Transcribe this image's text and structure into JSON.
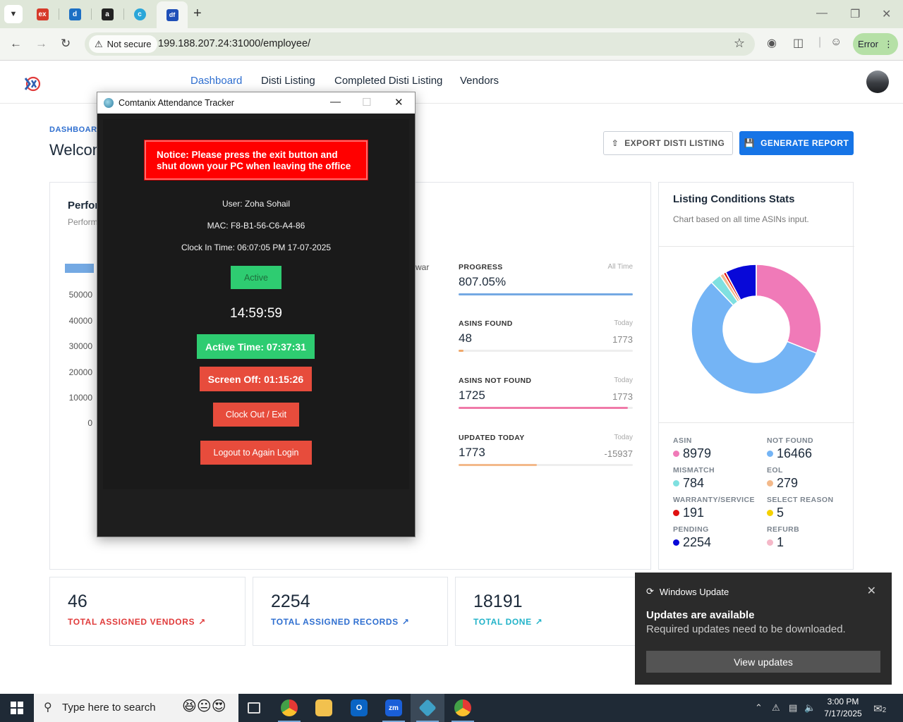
{
  "browser": {
    "tabs": [
      {
        "name": "ex",
        "color": "#d63a2a"
      },
      {
        "name": "d",
        "color": "#1c6fc4"
      },
      {
        "name": "a",
        "color": "#222222"
      },
      {
        "name": "c",
        "color": "#2aa6d9"
      },
      {
        "name": "df",
        "color": "#1f4fb8"
      }
    ],
    "security_label": "Not secure",
    "url": "199.188.207.24:31000/employee/",
    "error_label": "Error"
  },
  "app": {
    "nav": [
      "Dashboard",
      "Disti Listing",
      "Completed Disti Listing",
      "Vendors"
    ],
    "breadcrumb": "DASHBOARD",
    "welcome": "Welcon",
    "export_label": "EXPORT DISTI LISTING",
    "report_label": "GENERATE REPORT",
    "performance": {
      "title": "Perfor",
      "subtitle": "Perform",
      "y_ticks": [
        "50000",
        "40000",
        "30000",
        "20000",
        "10000",
        "0"
      ],
      "legend_fragment": "war"
    },
    "stats": [
      {
        "label": "PROGRESS",
        "when": "All Time",
        "value": "807.05%",
        "total": "",
        "fill": 1.0,
        "color": "#74a9e3"
      },
      {
        "label": "ASINS FOUND",
        "when": "Today",
        "value": "48",
        "total": "1773",
        "fill": 0.027,
        "color": "#f0a86a"
      },
      {
        "label": "ASINS NOT FOUND",
        "when": "Today",
        "value": "1725",
        "total": "1773",
        "fill": 0.973,
        "color": "#f07aa8"
      },
      {
        "label": "UPDATED TODAY",
        "when": "Today",
        "value": "1773",
        "total": "-15937",
        "fill": 0.45,
        "color": "#f3b98a"
      }
    ],
    "listing": {
      "title": "Listing Conditions Stats",
      "subtitle": "Chart based on all time ASINs input.",
      "legend": [
        {
          "cat": "ASIN",
          "value": "8979",
          "color": "#f07ab8"
        },
        {
          "cat": "NOT FOUND",
          "value": "16466",
          "color": "#74b4f5"
        },
        {
          "cat": "MISMATCH",
          "value": "784",
          "color": "#7fe0e0"
        },
        {
          "cat": "EOL",
          "value": "279",
          "color": "#f3b98a"
        },
        {
          "cat": "WARRANTY/SERVICE",
          "value": "191",
          "color": "#e01010"
        },
        {
          "cat": "SELECT REASON",
          "value": "5",
          "color": "#f5d100"
        },
        {
          "cat": "PENDING",
          "value": "2254",
          "color": "#0808d8"
        },
        {
          "cat": "REFURB",
          "value": "1",
          "color": "#f5b8c8"
        }
      ]
    },
    "kpis": [
      {
        "value": "46",
        "label": "TOTAL ASSIGNED VENDORS",
        "color": "#e03b3b"
      },
      {
        "value": "2254",
        "label": "TOTAL ASSIGNED RECORDS",
        "color": "#2f6fd0"
      },
      {
        "value": "18191",
        "label": "TOTAL DONE",
        "color": "#22b3c9"
      }
    ]
  },
  "chart_data": {
    "type": "pie",
    "title": "Listing Conditions Stats",
    "categories": [
      "ASIN",
      "NOT FOUND",
      "MISMATCH",
      "EOL",
      "WARRANTY/SERVICE",
      "SELECT REASON",
      "PENDING",
      "REFURB"
    ],
    "values": [
      8979,
      16466,
      784,
      279,
      191,
      5,
      2254,
      1
    ],
    "colors": [
      "#f07ab8",
      "#74b4f5",
      "#7fe0e0",
      "#f3b98a",
      "#e01010",
      "#f5d100",
      "#0808d8",
      "#f5b8c8"
    ]
  },
  "tracker": {
    "title": "Comtanix Attendance Tracker",
    "notice": "Notice: Please press the exit button and shut down your PC when leaving the office",
    "user": "User: Zoha Sohail",
    "mac": "MAC: F8-B1-56-C6-A4-86",
    "clock_in": "Clock In Time: 06:07:05 PM 17-07-2025",
    "status": "Active",
    "timer": "14:59:59",
    "active_time": "Active Time: 07:37:31",
    "screen_off": "Screen Off: 01:15:26",
    "clock_out": "Clock Out / Exit",
    "logout": "Logout to Again Login"
  },
  "toast": {
    "app": "Windows Update",
    "title": "Updates are available",
    "message": "Required updates need to be downloaded.",
    "button": "View updates"
  },
  "taskbar": {
    "search_placeholder": "Type here to search",
    "time": "3:00 PM",
    "date": "7/17/2025",
    "notification_count": "2"
  }
}
